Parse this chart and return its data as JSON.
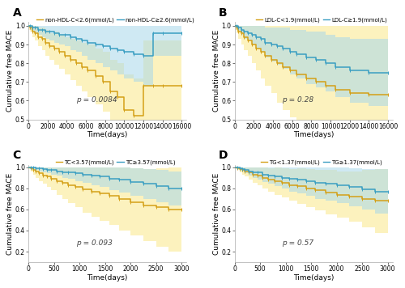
{
  "panels": [
    {
      "label": "A",
      "p_value": "p = 0.0084",
      "legend": [
        "non-HDL-C<2.6(mmol/L)",
        "non-HDL-C≥2.6(mmol/L)"
      ],
      "color_low": "#D4A017",
      "color_high": "#3A9EC2",
      "fill_low": "#FAE88A",
      "fill_high": "#A8D8EA",
      "x_ticks": [
        0,
        2000,
        4000,
        6000,
        8000,
        10000,
        12000,
        14000,
        16000
      ],
      "xlim": [
        0,
        16500
      ],
      "ylim": [
        0.5,
        1.02
      ],
      "y_ticks": [
        0.5,
        0.6,
        0.7,
        0.8,
        0.9,
        1.0
      ],
      "low_x": [
        0,
        200,
        400,
        700,
        1000,
        1400,
        1800,
        2200,
        2700,
        3200,
        3800,
        4400,
        5000,
        5600,
        6200,
        7000,
        7800,
        8500,
        9300,
        10000,
        11000,
        12000,
        13000,
        14000,
        16000
      ],
      "low_y": [
        1.0,
        0.99,
        0.97,
        0.96,
        0.94,
        0.93,
        0.91,
        0.89,
        0.88,
        0.86,
        0.84,
        0.82,
        0.8,
        0.78,
        0.76,
        0.73,
        0.7,
        0.65,
        0.62,
        0.55,
        0.52,
        0.68,
        0.68,
        0.68,
        0.68
      ],
      "low_lo": [
        0.98,
        0.97,
        0.94,
        0.92,
        0.89,
        0.87,
        0.84,
        0.82,
        0.79,
        0.77,
        0.74,
        0.71,
        0.68,
        0.65,
        0.62,
        0.58,
        0.54,
        0.48,
        0.44,
        0.36,
        0.32,
        0.44,
        0.44,
        0.44,
        0.44
      ],
      "low_hi": [
        1.0,
        1.0,
        1.0,
        1.0,
        0.99,
        0.99,
        0.98,
        0.96,
        0.97,
        0.95,
        0.94,
        0.93,
        0.92,
        0.91,
        0.9,
        0.88,
        0.86,
        0.82,
        0.8,
        0.74,
        0.72,
        0.92,
        0.92,
        0.92,
        0.92
      ],
      "high_x": [
        0,
        200,
        400,
        700,
        1000,
        1400,
        1800,
        2200,
        2700,
        3200,
        3800,
        4400,
        5000,
        5600,
        6200,
        7000,
        7800,
        8500,
        9300,
        10000,
        11000,
        12000,
        13000,
        14000,
        16000
      ],
      "high_y": [
        1.0,
        1.0,
        0.99,
        0.99,
        0.98,
        0.98,
        0.97,
        0.97,
        0.96,
        0.95,
        0.95,
        0.94,
        0.93,
        0.92,
        0.91,
        0.9,
        0.89,
        0.88,
        0.87,
        0.86,
        0.85,
        0.84,
        0.96,
        0.96,
        0.96
      ],
      "high_lo": [
        0.99,
        0.98,
        0.97,
        0.96,
        0.95,
        0.94,
        0.93,
        0.92,
        0.91,
        0.9,
        0.89,
        0.87,
        0.86,
        0.84,
        0.82,
        0.8,
        0.78,
        0.76,
        0.74,
        0.72,
        0.7,
        0.68,
        0.84,
        0.84,
        0.84
      ],
      "high_hi": [
        1.0,
        1.0,
        1.0,
        1.0,
        1.0,
        1.0,
        1.0,
        1.0,
        1.0,
        1.0,
        1.0,
        1.0,
        1.0,
        1.0,
        1.0,
        1.0,
        1.0,
        1.0,
        1.0,
        1.0,
        1.0,
        1.0,
        1.0,
        1.0,
        1.0
      ]
    },
    {
      "label": "B",
      "p_value": "p = 0.28",
      "legend": [
        "LDL-C<1.9(mmol/L)",
        "LDL-C≥1.9(mmol/L)"
      ],
      "color_low": "#D4A017",
      "color_high": "#3A9EC2",
      "fill_low": "#FAE88A",
      "fill_high": "#A8D8EA",
      "x_ticks": [
        0,
        2000,
        4000,
        6000,
        8000,
        10000,
        12000,
        14000,
        16000
      ],
      "xlim": [
        0,
        16500
      ],
      "ylim": [
        0.5,
        1.02
      ],
      "y_ticks": [
        0.5,
        0.6,
        0.7,
        0.8,
        0.9,
        1.0
      ],
      "low_x": [
        0,
        200,
        400,
        700,
        1000,
        1400,
        1800,
        2200,
        2700,
        3200,
        3800,
        4400,
        5000,
        5800,
        6500,
        7500,
        8500,
        9500,
        10500,
        12000,
        14000,
        16000
      ],
      "low_y": [
        1.0,
        0.99,
        0.97,
        0.96,
        0.94,
        0.92,
        0.9,
        0.88,
        0.86,
        0.84,
        0.82,
        0.8,
        0.78,
        0.76,
        0.74,
        0.72,
        0.7,
        0.68,
        0.66,
        0.64,
        0.63,
        0.63
      ],
      "low_lo": [
        0.98,
        0.96,
        0.93,
        0.9,
        0.87,
        0.84,
        0.8,
        0.76,
        0.72,
        0.68,
        0.64,
        0.59,
        0.55,
        0.51,
        0.47,
        0.43,
        0.39,
        0.35,
        0.3,
        0.25,
        0.22,
        0.22
      ],
      "low_hi": [
        1.0,
        1.0,
        1.0,
        1.0,
        1.0,
        1.0,
        1.0,
        1.0,
        1.0,
        1.0,
        1.0,
        1.0,
        1.0,
        1.0,
        1.0,
        1.0,
        1.0,
        1.0,
        1.0,
        1.0,
        1.0,
        1.0
      ],
      "high_x": [
        0,
        200,
        400,
        700,
        1000,
        1400,
        1800,
        2200,
        2700,
        3200,
        3800,
        4400,
        5000,
        5800,
        6500,
        7500,
        8500,
        9500,
        10500,
        12000,
        14000,
        16000
      ],
      "high_y": [
        1.0,
        1.0,
        0.99,
        0.98,
        0.97,
        0.96,
        0.95,
        0.94,
        0.93,
        0.91,
        0.9,
        0.89,
        0.88,
        0.86,
        0.85,
        0.83,
        0.82,
        0.8,
        0.78,
        0.76,
        0.75,
        0.75
      ],
      "high_lo": [
        0.99,
        0.98,
        0.97,
        0.95,
        0.93,
        0.92,
        0.9,
        0.88,
        0.86,
        0.83,
        0.81,
        0.79,
        0.77,
        0.74,
        0.72,
        0.69,
        0.67,
        0.65,
        0.62,
        0.59,
        0.57,
        0.57
      ],
      "high_hi": [
        1.0,
        1.0,
        1.0,
        1.0,
        1.0,
        1.0,
        1.0,
        1.0,
        1.0,
        0.99,
        0.99,
        0.99,
        0.99,
        0.98,
        0.98,
        0.97,
        0.97,
        0.95,
        0.94,
        0.93,
        0.93,
        0.93
      ]
    },
    {
      "label": "C",
      "p_value": "p = 0.093",
      "legend": [
        "TC<3.57(mmol/L)",
        "TC≥3.57(mmol/L)"
      ],
      "color_low": "#D4A017",
      "color_high": "#3A9EC2",
      "fill_low": "#FAE88A",
      "fill_high": "#A8D8EA",
      "x_ticks": [
        0,
        500,
        1000,
        1500,
        2000,
        2500,
        3000
      ],
      "xlim": [
        0,
        3100
      ],
      "ylim": [
        0.1,
        1.02
      ],
      "y_ticks": [
        0.2,
        0.4,
        0.6,
        0.8,
        1.0
      ],
      "low_x": [
        0,
        50,
        100,
        150,
        200,
        280,
        360,
        450,
        550,
        660,
        780,
        920,
        1070,
        1230,
        1400,
        1580,
        1780,
        2000,
        2250,
        2500,
        2750,
        3000
      ],
      "low_y": [
        1.0,
        0.99,
        0.97,
        0.96,
        0.94,
        0.92,
        0.91,
        0.89,
        0.87,
        0.85,
        0.83,
        0.81,
        0.79,
        0.77,
        0.75,
        0.73,
        0.7,
        0.67,
        0.64,
        0.62,
        0.6,
        0.6
      ],
      "low_lo": [
        0.98,
        0.96,
        0.93,
        0.9,
        0.87,
        0.84,
        0.81,
        0.78,
        0.74,
        0.7,
        0.66,
        0.62,
        0.57,
        0.53,
        0.49,
        0.45,
        0.4,
        0.35,
        0.3,
        0.25,
        0.2,
        0.2
      ],
      "low_hi": [
        1.0,
        1.0,
        1.0,
        1.0,
        1.0,
        1.0,
        1.0,
        1.0,
        1.0,
        1.0,
        1.0,
        1.0,
        1.0,
        1.0,
        1.0,
        1.0,
        1.0,
        0.99,
        0.98,
        0.99,
        1.0,
        1.0
      ],
      "high_x": [
        0,
        50,
        100,
        150,
        200,
        280,
        360,
        450,
        550,
        660,
        780,
        920,
        1070,
        1230,
        1400,
        1580,
        1780,
        2000,
        2250,
        2500,
        2750,
        3000
      ],
      "high_y": [
        1.0,
        1.0,
        1.0,
        0.99,
        0.99,
        0.98,
        0.97,
        0.97,
        0.96,
        0.95,
        0.95,
        0.94,
        0.93,
        0.92,
        0.91,
        0.89,
        0.88,
        0.86,
        0.84,
        0.82,
        0.8,
        0.8
      ],
      "high_lo": [
        0.99,
        0.98,
        0.98,
        0.97,
        0.96,
        0.95,
        0.94,
        0.93,
        0.92,
        0.9,
        0.89,
        0.87,
        0.85,
        0.83,
        0.81,
        0.78,
        0.76,
        0.73,
        0.7,
        0.67,
        0.64,
        0.64
      ],
      "high_hi": [
        1.0,
        1.0,
        1.0,
        1.0,
        1.0,
        1.0,
        1.0,
        1.0,
        1.0,
        1.0,
        1.0,
        1.0,
        1.0,
        1.0,
        1.0,
        1.0,
        1.0,
        0.99,
        0.98,
        0.97,
        0.96,
        0.96
      ]
    },
    {
      "label": "D",
      "p_value": "p = 0.57",
      "legend": [
        "TG<1.37(mmol/L)",
        "TG≥1.37(mmol/L)"
      ],
      "color_low": "#D4A017",
      "color_high": "#3A9EC2",
      "fill_low": "#FAE88A",
      "fill_high": "#A8D8EA",
      "x_ticks": [
        0,
        500,
        1000,
        1500,
        2000,
        2500,
        3000
      ],
      "xlim": [
        0,
        3100
      ],
      "ylim": [
        0.1,
        1.02
      ],
      "y_ticks": [
        0.2,
        0.4,
        0.6,
        0.8,
        1.0
      ],
      "low_x": [
        0,
        50,
        100,
        150,
        200,
        280,
        360,
        450,
        550,
        660,
        780,
        920,
        1070,
        1230,
        1400,
        1580,
        1780,
        2000,
        2250,
        2500,
        2750,
        3000
      ],
      "low_y": [
        1.0,
        0.99,
        0.98,
        0.97,
        0.96,
        0.95,
        0.93,
        0.92,
        0.9,
        0.88,
        0.87,
        0.85,
        0.83,
        0.82,
        0.8,
        0.78,
        0.76,
        0.74,
        0.72,
        0.7,
        0.68,
        0.68
      ],
      "low_lo": [
        0.98,
        0.97,
        0.95,
        0.93,
        0.91,
        0.88,
        0.85,
        0.83,
        0.8,
        0.77,
        0.74,
        0.71,
        0.68,
        0.65,
        0.62,
        0.59,
        0.55,
        0.52,
        0.48,
        0.43,
        0.38,
        0.38
      ],
      "low_hi": [
        1.0,
        1.0,
        1.0,
        1.0,
        1.0,
        1.0,
        1.0,
        1.0,
        1.0,
        0.99,
        1.0,
        0.99,
        0.98,
        0.99,
        0.98,
        0.97,
        0.97,
        0.96,
        0.96,
        0.97,
        0.98,
        0.98
      ],
      "high_x": [
        0,
        50,
        100,
        150,
        200,
        280,
        360,
        450,
        550,
        660,
        780,
        920,
        1070,
        1230,
        1400,
        1580,
        1780,
        2000,
        2250,
        2500,
        2750,
        3000
      ],
      "high_y": [
        1.0,
        1.0,
        0.99,
        0.98,
        0.97,
        0.96,
        0.95,
        0.95,
        0.93,
        0.92,
        0.91,
        0.9,
        0.89,
        0.88,
        0.87,
        0.85,
        0.84,
        0.83,
        0.81,
        0.79,
        0.77,
        0.77
      ],
      "high_lo": [
        0.99,
        0.98,
        0.97,
        0.96,
        0.94,
        0.92,
        0.9,
        0.88,
        0.86,
        0.84,
        0.82,
        0.8,
        0.77,
        0.75,
        0.73,
        0.7,
        0.68,
        0.66,
        0.63,
        0.6,
        0.56,
        0.56
      ],
      "high_hi": [
        1.0,
        1.0,
        1.0,
        1.0,
        1.0,
        1.0,
        1.0,
        1.0,
        1.0,
        1.0,
        1.0,
        1.0,
        1.0,
        1.0,
        1.0,
        1.0,
        1.0,
        1.0,
        0.99,
        0.98,
        0.98,
        0.98
      ]
    }
  ],
  "ylabel": "Cumulative free MACE",
  "xlabel": "Time(days)",
  "bg_color": "#ffffff",
  "label_fontsize": 6.5,
  "tick_fontsize": 5.5,
  "legend_fontsize": 5.0,
  "p_fontsize": 6.5
}
